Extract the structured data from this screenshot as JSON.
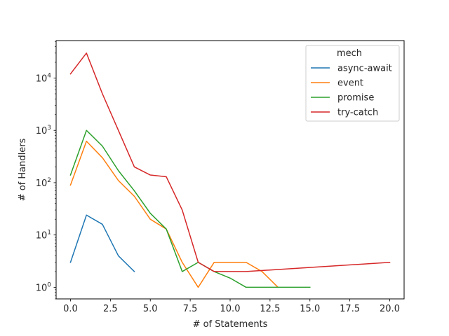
{
  "chart_data": {
    "type": "line",
    "title": "",
    "xlabel": "# of Statements",
    "ylabel": "# of Handlers",
    "yscale": "log",
    "xlim": [
      -0.9,
      20.9
    ],
    "ylim": [
      0.6,
      52000
    ],
    "xticks": [
      0.0,
      2.5,
      5.0,
      7.5,
      10.0,
      12.5,
      15.0,
      17.5,
      20.0
    ],
    "xtick_labels": [
      "0.0",
      "2.5",
      "5.0",
      "7.5",
      "10.0",
      "12.5",
      "15.0",
      "17.5",
      "20.0"
    ],
    "yticks": [
      1,
      10,
      100,
      1000,
      10000
    ],
    "ytick_labels": [
      {
        "base": "10",
        "exp": "0"
      },
      {
        "base": "10",
        "exp": "1"
      },
      {
        "base": "10",
        "exp": "2"
      },
      {
        "base": "10",
        "exp": "3"
      },
      {
        "base": "10",
        "exp": "4"
      }
    ],
    "grid": false,
    "legend": {
      "title": "mech",
      "placement": "top-right"
    },
    "series": [
      {
        "name": "async-await",
        "color": "#1f77b4",
        "x": [
          0,
          1,
          2,
          3,
          4
        ],
        "y": [
          3,
          24,
          16,
          4,
          2
        ]
      },
      {
        "name": "event",
        "color": "#ff7f0e",
        "x": [
          0,
          1,
          2,
          3,
          4,
          5,
          6,
          7,
          8,
          9,
          10,
          11,
          12,
          13
        ],
        "y": [
          90,
          620,
          300,
          110,
          55,
          20,
          13,
          3,
          1,
          3,
          3,
          3,
          2,
          1
        ]
      },
      {
        "name": "promise",
        "color": "#2ca02c",
        "x": [
          0,
          1,
          2,
          3,
          4,
          5,
          6,
          7,
          8,
          9,
          10,
          11,
          12,
          13,
          14,
          15
        ],
        "y": [
          140,
          1000,
          500,
          170,
          70,
          26,
          13,
          2,
          3,
          2,
          1.5,
          1,
          1,
          1,
          1,
          1
        ]
      },
      {
        "name": "try-catch",
        "color": "#d62728",
        "x": [
          0,
          1,
          2,
          3,
          4,
          5,
          6,
          7,
          8,
          9,
          11,
          20
        ],
        "y": [
          12000,
          30000,
          5000,
          1000,
          200,
          140,
          130,
          30,
          3,
          2,
          2,
          3
        ]
      }
    ]
  }
}
